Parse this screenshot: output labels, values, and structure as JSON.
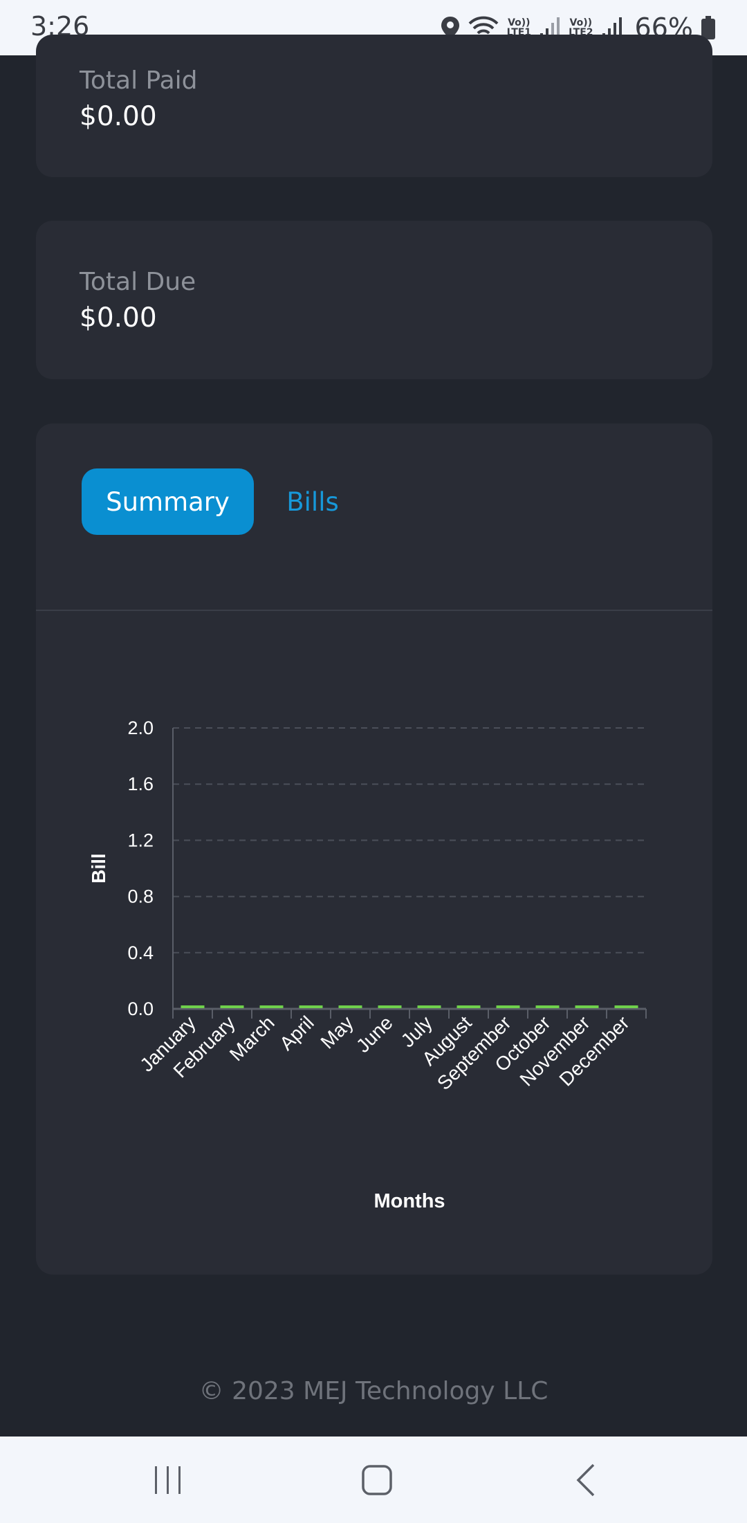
{
  "status_bar": {
    "time": "3:26",
    "sim1_label_top": "Vo))",
    "sim1_label_bottom": "LTE1",
    "sim2_label_top": "Vo))",
    "sim2_label_bottom": "LTE2",
    "battery": "66%",
    "icons": [
      "location-icon",
      "wifi-icon",
      "signal-icon",
      "battery-icon"
    ]
  },
  "total_paid": {
    "label": "Total Paid",
    "value": "$0.00"
  },
  "total_due": {
    "label": "Total Due",
    "value": "$0.00"
  },
  "tabs": [
    {
      "label": "Summary",
      "active": true
    },
    {
      "label": "Bills",
      "active": false
    }
  ],
  "chart_data": {
    "type": "bar",
    "categories": [
      "January",
      "February",
      "March",
      "April",
      "May",
      "June",
      "July",
      "August",
      "September",
      "October",
      "November",
      "December"
    ],
    "values": [
      0,
      0,
      0,
      0,
      0,
      0,
      0,
      0,
      0,
      0,
      0,
      0
    ],
    "xlabel": "Months",
    "ylabel": "Bill",
    "ylim": [
      0,
      2.0
    ],
    "yticks": [
      "0.0",
      "0.4",
      "0.8",
      "1.2",
      "1.6",
      "2.0"
    ],
    "grid": true,
    "bar_color": "#6fd04c"
  },
  "footer": {
    "text": "© 2023 MEJ Technology LLC"
  },
  "nav": {
    "icons": [
      "recent-apps-icon",
      "home-icon",
      "back-icon"
    ]
  },
  "colors": {
    "accent": "#0a8fd1",
    "background": "#21252d",
    "card": "#292c35"
  }
}
